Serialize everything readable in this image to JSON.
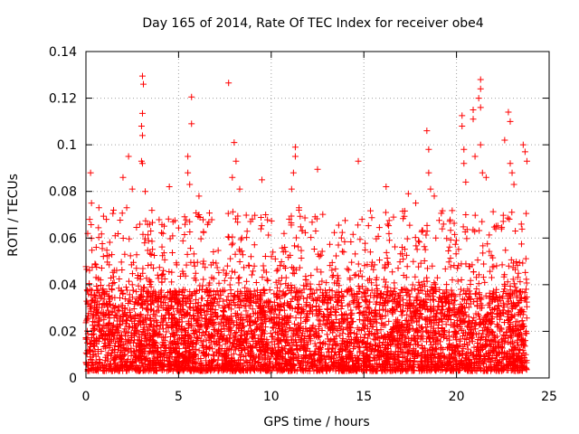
{
  "chart_data": {
    "type": "scatter",
    "title": "Day 165 of 2014, Rate Of TEC Index for receiver obe4",
    "xlabel": "GPS time / hours",
    "ylabel": "ROTI / TECUs",
    "xlim": [
      0,
      25
    ],
    "ylim": [
      0,
      0.14
    ],
    "x_ticks": [
      0,
      5,
      10,
      15,
      20,
      25
    ],
    "x_tick_labels": [
      "0",
      "5",
      "10",
      "15",
      "20",
      "25"
    ],
    "y_ticks": [
      0,
      0.02,
      0.04,
      0.06,
      0.08,
      0.1,
      0.12,
      0.14
    ],
    "y_tick_labels": [
      "0",
      "0.02",
      "0.04",
      "0.06",
      "0.08",
      "0.1",
      "0.12",
      "0.14"
    ],
    "grid": true,
    "marker": "+",
    "colors": {
      "points": "#ff0000",
      "grid": "#a0a0a0",
      "axes": "#000000"
    },
    "series": [
      {
        "name": "ROTI",
        "note": "dense scatter spanning 0 to ~23.8 h; bulk 0.003-0.05, frequent spikes to ~0.06-0.1; representative extreme points listed",
        "x_range": [
          0,
          23.8
        ],
        "bulk_range": [
          0.003,
          0.05
        ],
        "points": [
          [
            0.25,
            0.088
          ],
          [
            0.3,
            0.075
          ],
          [
            0.7,
            0.073
          ],
          [
            0.2,
            0.068
          ],
          [
            2.0,
            0.086
          ],
          [
            2.2,
            0.073
          ],
          [
            2.3,
            0.095
          ],
          [
            2.5,
            0.081
          ],
          [
            3.05,
            0.1295
          ],
          [
            3.1,
            0.126
          ],
          [
            3.05,
            0.1135
          ],
          [
            3.0,
            0.108
          ],
          [
            3.05,
            0.104
          ],
          [
            3.0,
            0.093
          ],
          [
            3.05,
            0.092
          ],
          [
            3.2,
            0.08
          ],
          [
            3.5,
            0.063
          ],
          [
            4.5,
            0.082
          ],
          [
            4.7,
            0.067
          ],
          [
            5.5,
            0.095
          ],
          [
            5.5,
            0.088
          ],
          [
            5.6,
            0.083
          ],
          [
            5.7,
            0.1205
          ],
          [
            5.7,
            0.109
          ],
          [
            5.6,
            0.067
          ],
          [
            6.1,
            0.078
          ],
          [
            6.1,
            0.07
          ],
          [
            7.7,
            0.1265
          ],
          [
            8.0,
            0.101
          ],
          [
            8.1,
            0.093
          ],
          [
            7.9,
            0.086
          ],
          [
            8.3,
            0.081
          ],
          [
            9.5,
            0.085
          ],
          [
            9.7,
            0.07
          ],
          [
            11.3,
            0.099
          ],
          [
            11.3,
            0.095
          ],
          [
            11.2,
            0.088
          ],
          [
            11.1,
            0.081
          ],
          [
            11.5,
            0.073
          ],
          [
            12.5,
            0.0895
          ],
          [
            12.4,
            0.063
          ],
          [
            14.7,
            0.093
          ],
          [
            14.9,
            0.068
          ],
          [
            16.2,
            0.082
          ],
          [
            16.6,
            0.069
          ],
          [
            17.4,
            0.079
          ],
          [
            17.8,
            0.075
          ],
          [
            18.4,
            0.106
          ],
          [
            18.5,
            0.098
          ],
          [
            18.5,
            0.088
          ],
          [
            18.6,
            0.081
          ],
          [
            18.8,
            0.078
          ],
          [
            19.3,
            0.066
          ],
          [
            20.3,
            0.1125
          ],
          [
            20.3,
            0.108
          ],
          [
            20.4,
            0.098
          ],
          [
            20.4,
            0.092
          ],
          [
            20.5,
            0.084
          ],
          [
            20.5,
            0.07
          ],
          [
            20.9,
            0.115
          ],
          [
            20.9,
            0.111
          ],
          [
            21.0,
            0.095
          ],
          [
            21.3,
            0.128
          ],
          [
            21.3,
            0.124
          ],
          [
            21.2,
            0.12
          ],
          [
            21.3,
            0.116
          ],
          [
            21.3,
            0.1
          ],
          [
            21.4,
            0.088
          ],
          [
            21.6,
            0.086
          ],
          [
            22.6,
            0.102
          ],
          [
            22.8,
            0.114
          ],
          [
            22.9,
            0.11
          ],
          [
            22.9,
            0.092
          ],
          [
            23.0,
            0.088
          ],
          [
            23.1,
            0.083
          ],
          [
            23.6,
            0.1
          ],
          [
            23.7,
            0.097
          ],
          [
            23.8,
            0.093
          ],
          [
            23.5,
            0.066
          ]
        ]
      }
    ]
  }
}
